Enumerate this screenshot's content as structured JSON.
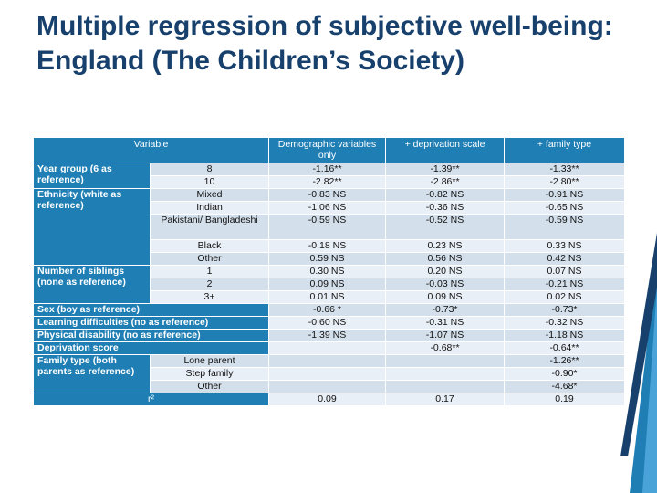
{
  "title": "Multiple regression of subjective well-being: England (The Children’s Society)",
  "table": {
    "headers": [
      "Variable",
      "Demographic variables only",
      "+ deprivation scale",
      "+ family type"
    ],
    "rows": [
      {
        "group": "Year group (6 as reference)",
        "sub": "8",
        "v": [
          "-1.16**",
          "-1.39**",
          "-1.33**"
        ]
      },
      {
        "group": "",
        "sub": "10",
        "v": [
          "-2.82**",
          "-2.86**",
          "-2.80**"
        ]
      },
      {
        "group": "Ethnicity (white as reference)",
        "sub": "Mixed",
        "v": [
          "-0.83 NS",
          "-0.82 NS",
          "-0.91 NS"
        ]
      },
      {
        "group": "",
        "sub": "Indian",
        "v": [
          "-1.06 NS",
          "-0.36 NS",
          "-0.65 NS"
        ]
      },
      {
        "group": "",
        "sub": "Pakistani/ Bangladeshi",
        "v": [
          "-0.59 NS",
          "-0.52 NS",
          "-0.59 NS"
        ]
      },
      {
        "group": "",
        "sub": "Black",
        "v": [
          "-0.18 NS",
          "0.23 NS",
          "0.33 NS"
        ]
      },
      {
        "group": "",
        "sub": "Other",
        "v": [
          "0.59 NS",
          "0.56 NS",
          "0.42 NS"
        ]
      },
      {
        "group": "Number of siblings (none as reference)",
        "sub": "1",
        "v": [
          "0.30 NS",
          "0.20 NS",
          "0.07 NS"
        ]
      },
      {
        "group": "",
        "sub": "2",
        "v": [
          "0.09 NS",
          "-0.03 NS",
          "-0.21 NS"
        ]
      },
      {
        "group": "",
        "sub": "3+",
        "v": [
          "0.01 NS",
          "0.09 NS",
          "0.02 NS"
        ]
      },
      {
        "group": "Sex (boy as reference)",
        "sub": "",
        "v": [
          "-0.66 *",
          "-0.73*",
          "-0.73*"
        ]
      },
      {
        "group": "Learning difficulties (no as reference)",
        "sub": "",
        "v": [
          "-0.60 NS",
          "-0.31 NS",
          "-0.32 NS"
        ]
      },
      {
        "group": "Physical disability (no as reference)",
        "sub": "",
        "v": [
          "-1.39 NS",
          "-1.07 NS",
          "-1.18 NS"
        ]
      },
      {
        "group": "Deprivation score",
        "sub": "",
        "v": [
          "",
          "-0.68**",
          "-0.64**"
        ]
      },
      {
        "group": "Family type (both parents as reference)",
        "sub": "Lone parent",
        "v": [
          "",
          "",
          "-1.26**"
        ]
      },
      {
        "group": "",
        "sub": "Step family",
        "v": [
          "",
          "",
          "-0.90*"
        ]
      },
      {
        "group": "",
        "sub": "Other",
        "v": [
          "",
          "",
          "-4.68*"
        ]
      }
    ],
    "r2": {
      "label": "r²",
      "v": [
        "0.09",
        "0.17",
        "0.19"
      ]
    }
  },
  "colors": {
    "title": "#17406d",
    "header": "#1f7fb5",
    "row": "#d3dfea",
    "row_alt": "#e9eff6",
    "accent": "#1f7fb5"
  }
}
